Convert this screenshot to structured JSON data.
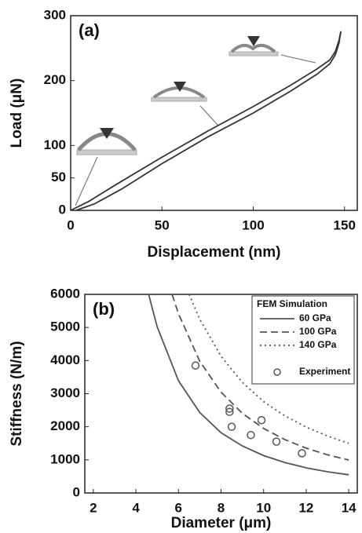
{
  "chart_data": [
    {
      "type": "line",
      "panel_label": "(a)",
      "x_label": "Displacement (nm)",
      "y_label": "Load (μN)",
      "xlim": [
        0,
        157
      ],
      "xticks": [
        0,
        50,
        100,
        150
      ],
      "ylim": [
        0,
        300
      ],
      "yticks": [
        0,
        50,
        100,
        200,
        300
      ],
      "series": [
        {
          "color": "#333333",
          "dash": "solid",
          "x": [
            0,
            10,
            25,
            50,
            75,
            100,
            120,
            135,
            142,
            145,
            147,
            148
          ],
          "values": [
            0,
            14,
            40,
            82,
            122,
            160,
            192,
            218,
            232,
            245,
            262,
            276
          ]
        },
        {
          "color": "#333333",
          "dash": "solid",
          "x": [
            3,
            13,
            28,
            50,
            75,
            100,
            120,
            135,
            142,
            145,
            147,
            148
          ],
          "values": [
            0,
            10,
            33,
            72,
            113,
            150,
            183,
            210,
            226,
            240,
            258,
            276
          ]
        }
      ]
    },
    {
      "type": "line",
      "panel_label": "(b)",
      "x_label": "Diameter (μm)",
      "y_label": "Stiffness (N/m)",
      "xlim": [
        1.6,
        14.4
      ],
      "xticks": [
        2,
        4,
        6,
        8,
        10,
        12,
        14
      ],
      "ylim": [
        0,
        6000
      ],
      "yticks": [
        0,
        1000,
        2000,
        3000,
        4000,
        5000,
        6000
      ],
      "legend_title": "FEM Simulation",
      "legend": "upper right",
      "series": [
        {
          "name": "60 GPa",
          "color": "#555555",
          "dash": "solid",
          "x": [
            4.6,
            5,
            6,
            7,
            8,
            9,
            10,
            11,
            12,
            13,
            14
          ],
          "values": [
            6000,
            5020,
            3390,
            2430,
            1820,
            1420,
            1130,
            920,
            760,
            640,
            550
          ]
        },
        {
          "name": "100 GPa",
          "color": "#555555",
          "dash": "dashed",
          "x": [
            5.7,
            6,
            7,
            8,
            9,
            10,
            11,
            12,
            13,
            14
          ],
          "values": [
            6000,
            5415,
            3978,
            3046,
            2407,
            1949,
            1611,
            1354,
            1153,
            995
          ]
        },
        {
          "name": "140 GPa",
          "color": "#555555",
          "dash": "dotted",
          "x": [
            6.5,
            7,
            8,
            9,
            10,
            11,
            12,
            13,
            14
          ],
          "values": [
            6000,
            5250,
            4130,
            3340,
            2760,
            2330,
            1990,
            1720,
            1500
          ]
        },
        {
          "name": "Experiment",
          "type": "scatter",
          "color": "#555555",
          "x": [
            6.8,
            8.4,
            8.4,
            8.5,
            9.4,
            9.9,
            10.6,
            11.8
          ],
          "values": [
            3850,
            2550,
            2450,
            2000,
            1750,
            2200,
            1550,
            1200
          ]
        }
      ]
    }
  ]
}
